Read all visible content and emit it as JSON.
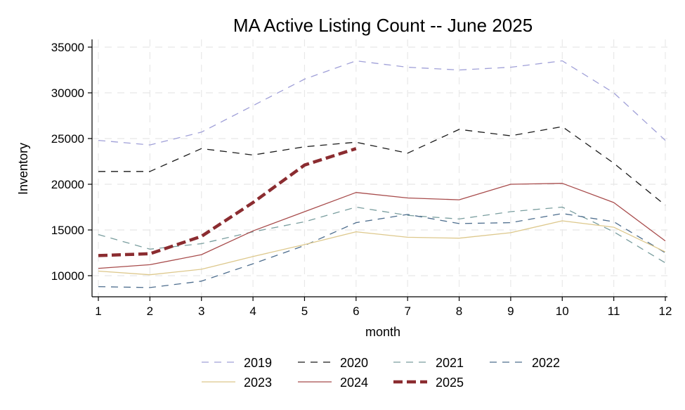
{
  "chart_data": {
    "type": "line",
    "title": "MA Active Listing Count -- June 2025",
    "xlabel": "month",
    "ylabel": "Inventory",
    "xlim": [
      1,
      12
    ],
    "ylim": [
      8000,
      35500
    ],
    "x_ticks": [
      1,
      2,
      3,
      4,
      5,
      6,
      7,
      8,
      9,
      10,
      11,
      12
    ],
    "y_ticks": [
      10000,
      15000,
      20000,
      25000,
      30000,
      35000
    ],
    "grid": true,
    "legend_position": "bottom",
    "series": [
      {
        "name": "2019",
        "color": "#a0a0d8",
        "dash": "dashed",
        "width": "thin",
        "x": [
          1,
          2,
          3,
          4,
          5,
          6,
          7,
          8,
          9,
          10,
          11,
          12
        ],
        "y": [
          24800,
          24300,
          25700,
          28600,
          31500,
          33500,
          32800,
          32500,
          32800,
          33500,
          30000,
          24800
        ]
      },
      {
        "name": "2020",
        "color": "#1a1a1a",
        "dash": "dashed",
        "width": "thin",
        "x": [
          1,
          2,
          3,
          4,
          5,
          6,
          7,
          8,
          9,
          10,
          11,
          12
        ],
        "y": [
          21400,
          21400,
          23900,
          23200,
          24100,
          24600,
          23400,
          26000,
          25300,
          26300,
          22300,
          17700
        ]
      },
      {
        "name": "2021",
        "color": "#7a9e9f",
        "dash": "dashed",
        "width": "thin",
        "x": [
          1,
          2,
          3,
          4,
          5,
          6,
          7,
          8,
          9,
          10,
          11,
          12
        ],
        "y": [
          14500,
          12900,
          13500,
          14800,
          15900,
          17500,
          16600,
          16200,
          17000,
          17500,
          14800,
          11400
        ]
      },
      {
        "name": "2022",
        "color": "#4e6e8e",
        "dash": "dashed",
        "width": "thin",
        "x": [
          1,
          2,
          3,
          4,
          5,
          6,
          7,
          8,
          9,
          10,
          11,
          12
        ],
        "y": [
          8800,
          8700,
          9400,
          11300,
          13300,
          15800,
          16700,
          15700,
          15800,
          16800,
          15900,
          12500
        ]
      },
      {
        "name": "2023",
        "color": "#ddc88c",
        "dash": "solid",
        "width": "thin",
        "x": [
          1,
          2,
          3,
          4,
          5,
          6,
          7,
          8,
          9,
          10,
          11,
          12
        ],
        "y": [
          10500,
          10100,
          10700,
          12100,
          13400,
          14800,
          14200,
          14100,
          14700,
          16000,
          15300,
          12600
        ]
      },
      {
        "name": "2024",
        "color": "#a84c4c",
        "dash": "solid",
        "width": "thin",
        "x": [
          1,
          2,
          3,
          4,
          5,
          6,
          7,
          8,
          9,
          10,
          11,
          12
        ],
        "y": [
          10800,
          11200,
          12300,
          14900,
          17000,
          19100,
          18500,
          18300,
          20000,
          20100,
          18000,
          13800
        ]
      },
      {
        "name": "2025",
        "color": "#8b2c30",
        "dash": "bold-dashed",
        "width": "thick",
        "x": [
          1,
          2,
          3,
          4,
          5,
          6
        ],
        "y": [
          12200,
          12400,
          14300,
          18000,
          22100,
          23900
        ]
      }
    ]
  }
}
